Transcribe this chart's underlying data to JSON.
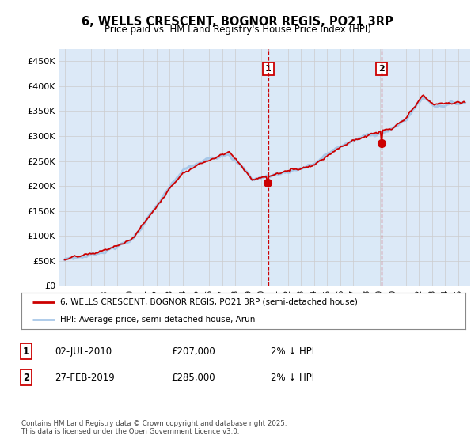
{
  "title": "6, WELLS CRESCENT, BOGNOR REGIS, PO21 3RP",
  "subtitle": "Price paid vs. HM Land Registry's House Price Index (HPI)",
  "legend_line1": "6, WELLS CRESCENT, BOGNOR REGIS, PO21 3RP (semi-detached house)",
  "legend_line2": "HPI: Average price, semi-detached house, Arun",
  "sale1_date": "02-JUL-2010",
  "sale1_price": "£207,000",
  "sale1_note": "2% ↓ HPI",
  "sale2_date": "27-FEB-2019",
  "sale2_price": "£285,000",
  "sale2_note": "2% ↓ HPI",
  "footer": "Contains HM Land Registry data © Crown copyright and database right 2025.\nThis data is licensed under the Open Government Licence v3.0.",
  "hpi_color": "#a8c8e8",
  "price_color": "#cc0000",
  "vline_color": "#cc0000",
  "grid_color": "#cccccc",
  "bg_color": "#dce9f7",
  "shade_color": "#daeaf8",
  "ylim": [
    0,
    475000
  ],
  "yticks": [
    0,
    50000,
    100000,
    150000,
    200000,
    250000,
    300000,
    350000,
    400000,
    450000
  ],
  "sale1_year": 2010.5,
  "sale2_year": 2019.15
}
